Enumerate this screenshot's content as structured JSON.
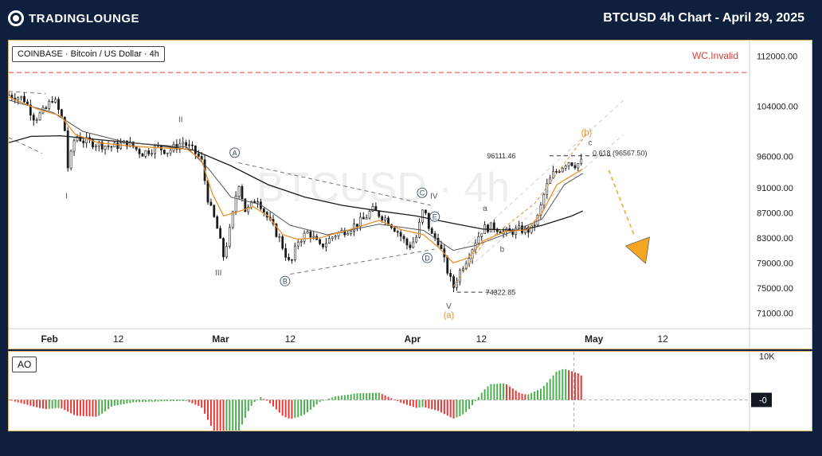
{
  "header": {
    "logo_text": "TradingLounge",
    "title": "BTCUSD 4h Chart - April 29, 2025"
  },
  "symbol_label": "COINBASE · Bitcoin / US Dollar · 4h",
  "watermark": "BTCUSD · 4h",
  "ao_label": "AO",
  "colors": {
    "background": "#0f1f3e",
    "panel_border": "#e0b66a",
    "candle": "#1a1a1a",
    "ema_fast": "#e8912e",
    "ema_slow": "#1a1a1a",
    "ema_mid": "#555555",
    "ao_up": "#4caf50",
    "ao_down": "#e53935",
    "invalid_line": "#e53935",
    "wave_label": "#555555",
    "wave_label_orange": "#e8912e",
    "projection_arrow": "#f5a623"
  },
  "chart_data": {
    "type": "candlestick",
    "title": "BTCUSD 4h Chart - April 29, 2025",
    "y_ticks": [
      112000,
      104000,
      96000,
      91000,
      87000,
      83000,
      79000,
      75000,
      71000
    ],
    "y_tick_labels": [
      "112000.00",
      "104000.00",
      "96000.00",
      "91000.00",
      "87000.00",
      "83000.00",
      "79000.00",
      "75000.00",
      "71000.00"
    ],
    "ylim": [
      68500,
      114500
    ],
    "x_ticks": [
      {
        "label": "Feb",
        "x": 0.055
      },
      {
        "label": "12",
        "x": 0.148
      },
      {
        "label": "Mar",
        "x": 0.286
      },
      {
        "label": "12",
        "x": 0.38
      },
      {
        "label": "Apr",
        "x": 0.545
      },
      {
        "label": "12",
        "x": 0.638
      },
      {
        "label": "May",
        "x": 0.79
      },
      {
        "label": "12",
        "x": 0.883
      }
    ],
    "price_path": [
      [
        0.0,
        105800
      ],
      [
        0.02,
        105300
      ],
      [
        0.035,
        102000
      ],
      [
        0.05,
        103500
      ],
      [
        0.06,
        105500
      ],
      [
        0.075,
        101000
      ],
      [
        0.08,
        94000
      ],
      [
        0.09,
        99500
      ],
      [
        0.1,
        98500
      ],
      [
        0.12,
        98000
      ],
      [
        0.14,
        97500
      ],
      [
        0.16,
        98200
      ],
      [
        0.18,
        96500
      ],
      [
        0.2,
        97500
      ],
      [
        0.215,
        96800
      ],
      [
        0.235,
        98300
      ],
      [
        0.25,
        96800
      ],
      [
        0.26,
        95400
      ],
      [
        0.27,
        88500
      ],
      [
        0.28,
        85200
      ],
      [
        0.29,
        80000
      ],
      [
        0.3,
        85000
      ],
      [
        0.31,
        92200
      ],
      [
        0.32,
        87000
      ],
      [
        0.335,
        89500
      ],
      [
        0.35,
        86000
      ],
      [
        0.365,
        83000
      ],
      [
        0.38,
        78500
      ],
      [
        0.39,
        82500
      ],
      [
        0.405,
        84000
      ],
      [
        0.42,
        81500
      ],
      [
        0.44,
        83500
      ],
      [
        0.46,
        84500
      ],
      [
        0.48,
        86000
      ],
      [
        0.49,
        87500
      ],
      [
        0.51,
        86000
      ],
      [
        0.525,
        84000
      ],
      [
        0.54,
        81500
      ],
      [
        0.55,
        83000
      ],
      [
        0.56,
        87800
      ],
      [
        0.57,
        83500
      ],
      [
        0.58,
        82500
      ],
      [
        0.59,
        78500
      ],
      [
        0.6,
        75000
      ],
      [
        0.61,
        78000
      ],
      [
        0.62,
        80000
      ],
      [
        0.63,
        82500
      ],
      [
        0.64,
        84500
      ],
      [
        0.655,
        84800
      ],
      [
        0.67,
        83800
      ],
      [
        0.69,
        84300
      ],
      [
        0.705,
        84200
      ],
      [
        0.715,
        86500
      ],
      [
        0.725,
        91000
      ],
      [
        0.735,
        93200
      ],
      [
        0.745,
        94200
      ],
      [
        0.755,
        95300
      ],
      [
        0.765,
        94700
      ],
      [
        0.775,
        95200
      ]
    ],
    "ema_fast": [
      [
        0.0,
        105500
      ],
      [
        0.04,
        103500
      ],
      [
        0.07,
        102500
      ],
      [
        0.09,
        99500
      ],
      [
        0.12,
        98200
      ],
      [
        0.16,
        97700
      ],
      [
        0.2,
        97400
      ],
      [
        0.24,
        97200
      ],
      [
        0.26,
        95500
      ],
      [
        0.275,
        90000
      ],
      [
        0.29,
        86500
      ],
      [
        0.31,
        87200
      ],
      [
        0.33,
        88000
      ],
      [
        0.35,
        86500
      ],
      [
        0.37,
        83500
      ],
      [
        0.39,
        82800
      ],
      [
        0.42,
        83000
      ],
      [
        0.46,
        84300
      ],
      [
        0.5,
        85800
      ],
      [
        0.53,
        84300
      ],
      [
        0.56,
        83500
      ],
      [
        0.58,
        81500
      ],
      [
        0.6,
        79000
      ],
      [
        0.62,
        79800
      ],
      [
        0.64,
        82500
      ],
      [
        0.67,
        84000
      ],
      [
        0.7,
        84300
      ],
      [
        0.72,
        87000
      ],
      [
        0.74,
        91500
      ],
      [
        0.775,
        94000
      ]
    ],
    "ema_mid": [
      [
        0.0,
        105000
      ],
      [
        0.06,
        103000
      ],
      [
        0.1,
        100000
      ],
      [
        0.16,
        98200
      ],
      [
        0.24,
        97500
      ],
      [
        0.27,
        94000
      ],
      [
        0.3,
        89500
      ],
      [
        0.34,
        88300
      ],
      [
        0.38,
        85000
      ],
      [
        0.43,
        83500
      ],
      [
        0.5,
        85200
      ],
      [
        0.56,
        84200
      ],
      [
        0.6,
        81000
      ],
      [
        0.63,
        81800
      ],
      [
        0.68,
        84000
      ],
      [
        0.72,
        86000
      ],
      [
        0.75,
        91500
      ],
      [
        0.775,
        93300
      ]
    ],
    "ema_slow": [
      [
        0.0,
        98200
      ],
      [
        0.03,
        99200
      ],
      [
        0.07,
        99300
      ],
      [
        0.12,
        98700
      ],
      [
        0.2,
        97800
      ],
      [
        0.25,
        97000
      ],
      [
        0.3,
        94500
      ],
      [
        0.35,
        91500
      ],
      [
        0.4,
        89500
      ],
      [
        0.45,
        88200
      ],
      [
        0.5,
        87300
      ],
      [
        0.55,
        86500
      ],
      [
        0.6,
        85300
      ],
      [
        0.64,
        84400
      ],
      [
        0.69,
        84200
      ],
      [
        0.72,
        85000
      ],
      [
        0.76,
        86500
      ],
      [
        0.775,
        87300
      ]
    ],
    "invalidation": {
      "label": "WC.Invalid",
      "price": 109400
    },
    "wave_labels": [
      {
        "text": "I",
        "x": 0.078,
        "price": 89800,
        "style": "plain"
      },
      {
        "text": "II",
        "x": 0.232,
        "price": 102000,
        "style": "plain"
      },
      {
        "text": "III",
        "x": 0.283,
        "price": 77500,
        "style": "plain"
      },
      {
        "text": "IV",
        "x": 0.574,
        "price": 89800,
        "style": "plain"
      },
      {
        "text": "V",
        "x": 0.594,
        "price": 72200,
        "style": "plain"
      },
      {
        "text": "A",
        "x": 0.305,
        "price": 96600,
        "style": "circle"
      },
      {
        "text": "B",
        "x": 0.373,
        "price": 76100,
        "style": "circle"
      },
      {
        "text": "C",
        "x": 0.558,
        "price": 90200,
        "style": "circle"
      },
      {
        "text": "D",
        "x": 0.565,
        "price": 79800,
        "style": "circle"
      },
      {
        "text": "E",
        "x": 0.575,
        "price": 86400,
        "style": "circle"
      },
      {
        "text": "a",
        "x": 0.643,
        "price": 87800,
        "style": "small"
      },
      {
        "text": "b",
        "x": 0.666,
        "price": 81300,
        "style": "small"
      },
      {
        "text": "c",
        "x": 0.785,
        "price": 98300,
        "style": "small"
      },
      {
        "text": "(a)",
        "x": 0.594,
        "price": 70700,
        "style": "orange"
      },
      {
        "text": "(b)",
        "x": 0.78,
        "price": 99900,
        "style": "orange"
      }
    ],
    "levels": [
      {
        "text": "96111.46",
        "x": 0.665,
        "price": 96100
      },
      {
        "text": "0.618 (96567.50)",
        "x": 0.825,
        "price": 96500
      },
      {
        "text": "74322.85",
        "x": 0.664,
        "price": 74300
      }
    ],
    "ao_label": "AO",
    "ao_ticks": [
      {
        "label": "10K",
        "value": 10000
      }
    ],
    "ao_current_label": "-0",
    "ao_ylim": [
      -7000,
      11000
    ]
  }
}
